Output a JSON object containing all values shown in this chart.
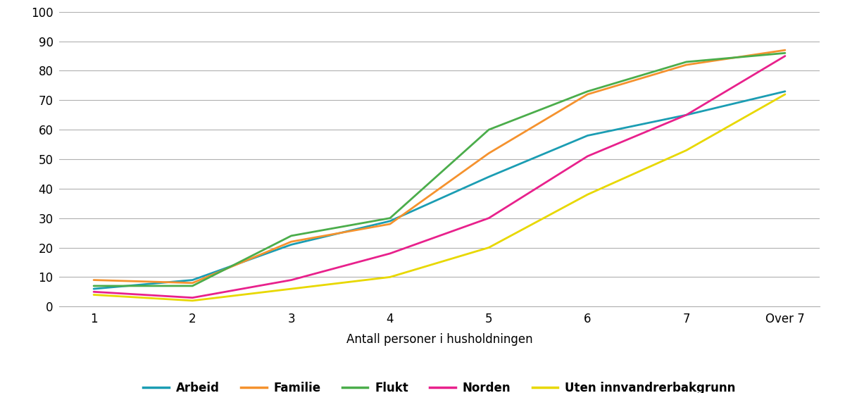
{
  "x_labels": [
    "1",
    "2",
    "3",
    "4",
    "5",
    "6",
    "7",
    "Over 7"
  ],
  "x_values": [
    0,
    1,
    2,
    3,
    4,
    5,
    6,
    7
  ],
  "series": {
    "Arbeid": {
      "values": [
        6,
        9,
        21,
        29,
        44,
        58,
        65,
        73
      ],
      "color": "#1B9DB3"
    },
    "Familie": {
      "values": [
        9,
        8,
        22,
        28,
        52,
        72,
        82,
        87
      ],
      "color": "#F5922E"
    },
    "Flukt": {
      "values": [
        7,
        7,
        24,
        30,
        60,
        73,
        83,
        86
      ],
      "color": "#4BAD4B"
    },
    "Norden": {
      "values": [
        5,
        3,
        9,
        18,
        30,
        51,
        65,
        85
      ],
      "color": "#E8218C"
    },
    "Uten innvandrerbakgrunn": {
      "values": [
        4,
        2,
        6,
        10,
        20,
        38,
        53,
        72
      ],
      "color": "#E8D800"
    }
  },
  "xlabel": "Antall personer i husholdningen",
  "ylim": [
    0,
    100
  ],
  "yticks": [
    0,
    10,
    20,
    30,
    40,
    50,
    60,
    70,
    80,
    90,
    100
  ],
  "background_color": "#ffffff",
  "grid_color": "#b0b0b0",
  "legend_order": [
    "Arbeid",
    "Familie",
    "Flukt",
    "Norden",
    "Uten innvandrerbakgrunn"
  ]
}
